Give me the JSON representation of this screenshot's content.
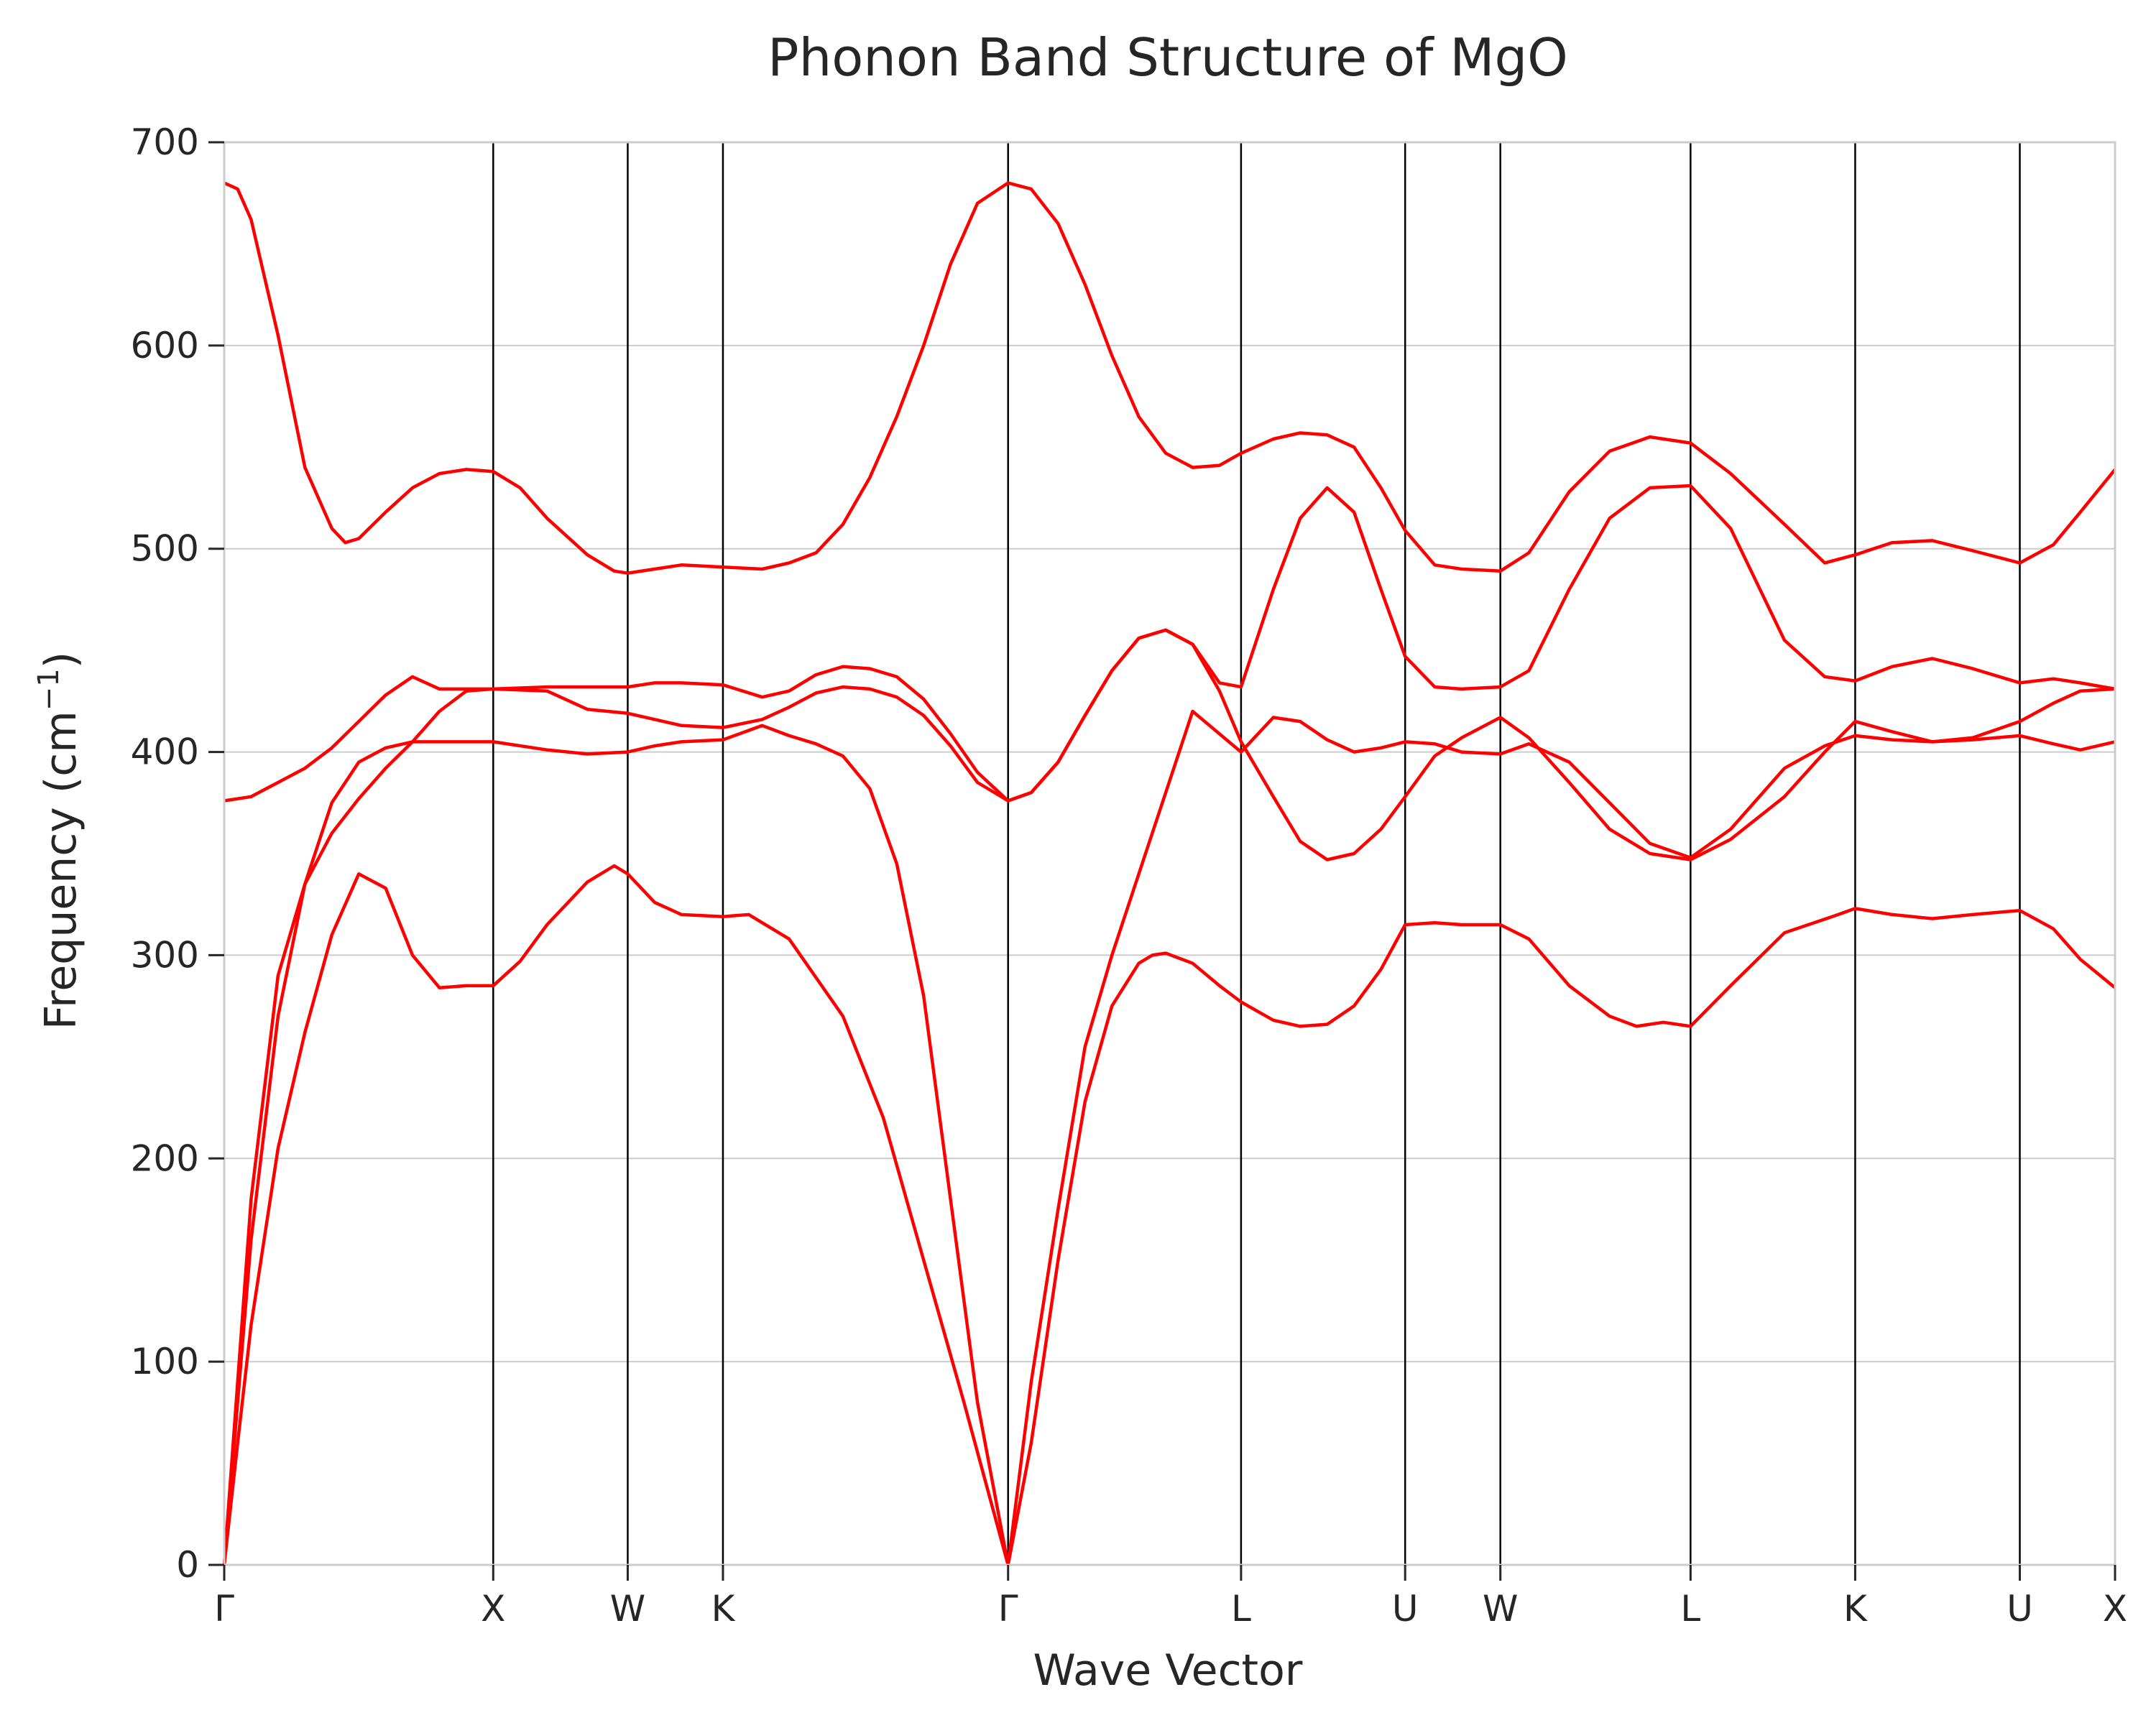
{
  "chart_data": {
    "type": "line",
    "title": "Phonon Band Structure of MgO",
    "xlabel": "Wave Vector",
    "ylabel": "Frequency (cm",
    "ylabel_sup": "−1",
    "ylabel_close": ")",
    "ylim": [
      0,
      700
    ],
    "yticks": [
      0,
      100,
      200,
      300,
      400,
      500,
      600,
      700
    ],
    "grid": "horizontal",
    "line_color": "#ff0000",
    "kpoints": [
      {
        "label": "Γ",
        "x": 0
      },
      {
        "label": "X",
        "x": 1.0
      },
      {
        "label": "W",
        "x": 1.5
      },
      {
        "label": "K",
        "x": 1.854
      },
      {
        "label": "Γ",
        "x": 2.914
      },
      {
        "label": "L",
        "x": 3.78
      },
      {
        "label": "U",
        "x": 4.39
      },
      {
        "label": "W",
        "x": 4.744
      },
      {
        "label": "L",
        "x": 5.451
      },
      {
        "label": "K",
        "x": 6.063
      },
      {
        "label": "U",
        "x": 6.675
      },
      {
        "label": "X",
        "x": 7.029
      }
    ],
    "series": [
      {
        "values": [
          [
            0,
            0
          ],
          [
            0.05,
            60
          ],
          [
            0.1,
            118
          ],
          [
            0.2,
            205
          ],
          [
            0.3,
            262
          ],
          [
            0.4,
            310
          ],
          [
            0.5,
            340
          ],
          [
            0.6,
            333
          ],
          [
            0.7,
            300
          ],
          [
            0.8,
            284
          ],
          [
            0.9,
            285
          ],
          [
            1.0,
            285
          ],
          [
            1.1,
            297
          ],
          [
            1.2,
            315
          ],
          [
            1.35,
            336
          ],
          [
            1.45,
            344
          ],
          [
            1.5,
            340
          ],
          [
            1.6,
            326
          ],
          [
            1.7,
            320
          ],
          [
            1.854,
            319
          ],
          [
            1.95,
            320
          ],
          [
            2.1,
            308
          ],
          [
            2.3,
            270
          ],
          [
            2.45,
            220
          ],
          [
            2.6,
            150
          ],
          [
            2.75,
            80
          ],
          [
            2.914,
            0
          ],
          [
            3.0,
            60
          ],
          [
            3.1,
            150
          ],
          [
            3.2,
            228
          ],
          [
            3.3,
            275
          ],
          [
            3.4,
            296
          ],
          [
            3.45,
            300
          ],
          [
            3.5,
            301
          ],
          [
            3.6,
            296
          ],
          [
            3.7,
            285
          ],
          [
            3.78,
            277
          ],
          [
            3.9,
            268
          ],
          [
            4.0,
            265
          ],
          [
            4.1,
            266
          ],
          [
            4.2,
            275
          ],
          [
            4.3,
            293
          ],
          [
            4.39,
            315
          ],
          [
            4.5,
            316
          ],
          [
            4.6,
            315
          ],
          [
            4.744,
            315
          ],
          [
            4.85,
            308
          ],
          [
            5.0,
            285
          ],
          [
            5.15,
            270
          ],
          [
            5.25,
            265
          ],
          [
            5.35,
            267
          ],
          [
            5.451,
            265
          ],
          [
            5.6,
            285
          ],
          [
            5.8,
            311
          ],
          [
            6.0,
            320
          ],
          [
            6.063,
            323
          ],
          [
            6.2,
            320
          ],
          [
            6.35,
            318
          ],
          [
            6.5,
            320
          ],
          [
            6.675,
            322
          ],
          [
            6.8,
            313
          ],
          [
            6.9,
            298
          ],
          [
            7.029,
            284
          ]
        ]
      },
      {
        "values": [
          [
            0,
            0
          ],
          [
            0.05,
            80
          ],
          [
            0.1,
            160
          ],
          [
            0.2,
            270
          ],
          [
            0.3,
            335
          ],
          [
            0.4,
            375
          ],
          [
            0.5,
            395
          ],
          [
            0.6,
            402
          ],
          [
            0.7,
            405
          ],
          [
            0.8,
            405
          ],
          [
            0.9,
            405
          ],
          [
            1.0,
            405
          ],
          [
            1.2,
            401
          ],
          [
            1.35,
            399
          ],
          [
            1.5,
            400
          ],
          [
            1.6,
            403
          ],
          [
            1.7,
            405
          ],
          [
            1.854,
            406
          ],
          [
            2.0,
            413
          ],
          [
            2.1,
            408
          ],
          [
            2.2,
            404
          ],
          [
            2.3,
            398
          ],
          [
            2.4,
            382
          ],
          [
            2.5,
            345
          ],
          [
            2.6,
            280
          ],
          [
            2.7,
            180
          ],
          [
            2.8,
            80
          ],
          [
            2.914,
            0
          ],
          [
            3.0,
            90
          ],
          [
            3.1,
            175
          ],
          [
            3.2,
            255
          ],
          [
            3.3,
            300
          ],
          [
            3.4,
            340
          ],
          [
            3.5,
            380
          ],
          [
            3.6,
            420
          ],
          [
            3.78,
            400
          ],
          [
            3.9,
            417
          ],
          [
            4.0,
            415
          ],
          [
            4.1,
            406
          ],
          [
            4.2,
            400
          ],
          [
            4.3,
            402
          ],
          [
            4.39,
            405
          ],
          [
            4.5,
            404
          ],
          [
            4.6,
            400
          ],
          [
            4.744,
            399
          ],
          [
            4.85,
            404
          ],
          [
            5.0,
            395
          ],
          [
            5.15,
            375
          ],
          [
            5.3,
            355
          ],
          [
            5.451,
            348
          ],
          [
            5.6,
            362
          ],
          [
            5.8,
            392
          ],
          [
            5.95,
            403
          ],
          [
            6.063,
            408
          ],
          [
            6.2,
            406
          ],
          [
            6.35,
            405
          ],
          [
            6.5,
            406
          ],
          [
            6.675,
            408
          ],
          [
            6.8,
            404
          ],
          [
            6.9,
            401
          ],
          [
            7.029,
            405
          ]
        ]
      },
      {
        "values": [
          [
            0,
            0
          ],
          [
            0.05,
            90
          ],
          [
            0.1,
            180
          ],
          [
            0.2,
            290
          ],
          [
            0.3,
            335
          ],
          [
            0.4,
            360
          ],
          [
            0.5,
            377
          ],
          [
            0.6,
            392
          ],
          [
            0.7,
            405
          ],
          [
            0.8,
            420
          ],
          [
            0.9,
            430
          ],
          [
            1.0,
            431
          ],
          [
            1.2,
            430
          ],
          [
            1.35,
            421
          ],
          [
            1.5,
            419
          ],
          [
            1.6,
            416
          ],
          [
            1.7,
            413
          ],
          [
            1.854,
            412
          ],
          [
            2.0,
            416
          ],
          [
            2.1,
            422
          ],
          [
            2.2,
            429
          ],
          [
            2.3,
            432
          ],
          [
            2.4,
            431
          ],
          [
            2.5,
            427
          ],
          [
            2.6,
            418
          ],
          [
            2.7,
            403
          ],
          [
            2.8,
            385
          ],
          [
            2.914,
            376
          ],
          [
            3.0,
            380
          ],
          [
            3.1,
            395
          ],
          [
            3.2,
            418
          ],
          [
            3.3,
            440
          ],
          [
            3.4,
            456
          ],
          [
            3.5,
            460
          ],
          [
            3.6,
            453
          ],
          [
            3.7,
            430
          ],
          [
            3.78,
            405
          ],
          [
            3.9,
            378
          ],
          [
            4.0,
            356
          ],
          [
            4.1,
            347
          ],
          [
            4.2,
            350
          ],
          [
            4.3,
            362
          ],
          [
            4.39,
            378
          ],
          [
            4.5,
            398
          ],
          [
            4.6,
            407
          ],
          [
            4.744,
            417
          ],
          [
            4.85,
            407
          ],
          [
            5.0,
            385
          ],
          [
            5.15,
            362
          ],
          [
            5.3,
            350
          ],
          [
            5.451,
            347
          ],
          [
            5.6,
            357
          ],
          [
            5.8,
            378
          ],
          [
            5.95,
            400
          ],
          [
            6.063,
            415
          ],
          [
            6.2,
            410
          ],
          [
            6.35,
            405
          ],
          [
            6.5,
            407
          ],
          [
            6.675,
            415
          ],
          [
            6.8,
            424
          ],
          [
            6.9,
            430
          ],
          [
            7.029,
            431
          ]
        ]
      },
      {
        "values": [
          [
            0,
            376
          ],
          [
            0.1,
            378
          ],
          [
            0.2,
            385
          ],
          [
            0.3,
            392
          ],
          [
            0.4,
            402
          ],
          [
            0.5,
            415
          ],
          [
            0.6,
            428
          ],
          [
            0.7,
            437
          ],
          [
            0.8,
            431
          ],
          [
            0.9,
            431
          ],
          [
            1.0,
            431
          ],
          [
            1.2,
            432
          ],
          [
            1.35,
            432
          ],
          [
            1.5,
            432
          ],
          [
            1.6,
            434
          ],
          [
            1.7,
            434
          ],
          [
            1.854,
            433
          ],
          [
            2.0,
            427
          ],
          [
            2.1,
            430
          ],
          [
            2.2,
            438
          ],
          [
            2.3,
            442
          ],
          [
            2.4,
            441
          ],
          [
            2.5,
            437
          ],
          [
            2.6,
            426
          ],
          [
            2.7,
            409
          ],
          [
            2.8,
            390
          ],
          [
            2.914,
            376
          ],
          [
            3.0,
            380
          ],
          [
            3.1,
            395
          ],
          [
            3.2,
            418
          ],
          [
            3.3,
            440
          ],
          [
            3.4,
            456
          ],
          [
            3.5,
            460
          ],
          [
            3.6,
            453
          ],
          [
            3.7,
            434
          ],
          [
            3.78,
            432
          ],
          [
            3.9,
            480
          ],
          [
            4.0,
            515
          ],
          [
            4.1,
            530
          ],
          [
            4.2,
            518
          ],
          [
            4.3,
            480
          ],
          [
            4.39,
            447
          ],
          [
            4.5,
            432
          ],
          [
            4.6,
            431
          ],
          [
            4.744,
            432
          ],
          [
            4.85,
            440
          ],
          [
            5.0,
            480
          ],
          [
            5.15,
            515
          ],
          [
            5.3,
            530
          ],
          [
            5.451,
            531
          ],
          [
            5.6,
            510
          ],
          [
            5.8,
            455
          ],
          [
            5.95,
            437
          ],
          [
            6.063,
            435
          ],
          [
            6.2,
            442
          ],
          [
            6.35,
            446
          ],
          [
            6.5,
            441
          ],
          [
            6.675,
            434
          ],
          [
            6.8,
            436
          ],
          [
            6.9,
            434
          ],
          [
            7.029,
            431
          ]
        ]
      },
      {
        "values": [
          [
            0,
            680
          ],
          [
            0.05,
            677
          ],
          [
            0.1,
            662
          ],
          [
            0.2,
            605
          ],
          [
            0.3,
            540
          ],
          [
            0.4,
            510
          ],
          [
            0.45,
            503
          ],
          [
            0.5,
            505
          ],
          [
            0.6,
            518
          ],
          [
            0.7,
            530
          ],
          [
            0.8,
            537
          ],
          [
            0.9,
            539
          ],
          [
            1.0,
            538
          ],
          [
            1.1,
            530
          ],
          [
            1.2,
            515
          ],
          [
            1.35,
            497
          ],
          [
            1.45,
            489
          ],
          [
            1.5,
            488
          ],
          [
            1.6,
            490
          ],
          [
            1.7,
            492
          ],
          [
            1.854,
            491
          ],
          [
            2.0,
            490
          ],
          [
            2.1,
            493
          ],
          [
            2.2,
            498
          ],
          [
            2.3,
            512
          ],
          [
            2.4,
            535
          ],
          [
            2.5,
            565
          ],
          [
            2.6,
            600
          ],
          [
            2.7,
            640
          ],
          [
            2.8,
            670
          ],
          [
            2.914,
            680
          ],
          [
            3.0,
            677
          ],
          [
            3.1,
            660
          ],
          [
            3.2,
            630
          ],
          [
            3.3,
            595
          ],
          [
            3.4,
            565
          ],
          [
            3.5,
            547
          ],
          [
            3.6,
            540
          ],
          [
            3.7,
            541
          ],
          [
            3.78,
            547
          ],
          [
            3.9,
            554
          ],
          [
            4.0,
            557
          ],
          [
            4.1,
            556
          ],
          [
            4.2,
            550
          ],
          [
            4.3,
            530
          ],
          [
            4.39,
            509
          ],
          [
            4.5,
            492
          ],
          [
            4.6,
            490
          ],
          [
            4.744,
            489
          ],
          [
            4.85,
            498
          ],
          [
            5.0,
            528
          ],
          [
            5.15,
            548
          ],
          [
            5.3,
            555
          ],
          [
            5.451,
            552
          ],
          [
            5.6,
            537
          ],
          [
            5.8,
            512
          ],
          [
            5.95,
            493
          ],
          [
            6.063,
            497
          ],
          [
            6.2,
            503
          ],
          [
            6.35,
            504
          ],
          [
            6.5,
            499
          ],
          [
            6.675,
            493
          ],
          [
            6.8,
            502
          ],
          [
            6.9,
            518
          ],
          [
            7.029,
            539
          ]
        ]
      }
    ]
  }
}
